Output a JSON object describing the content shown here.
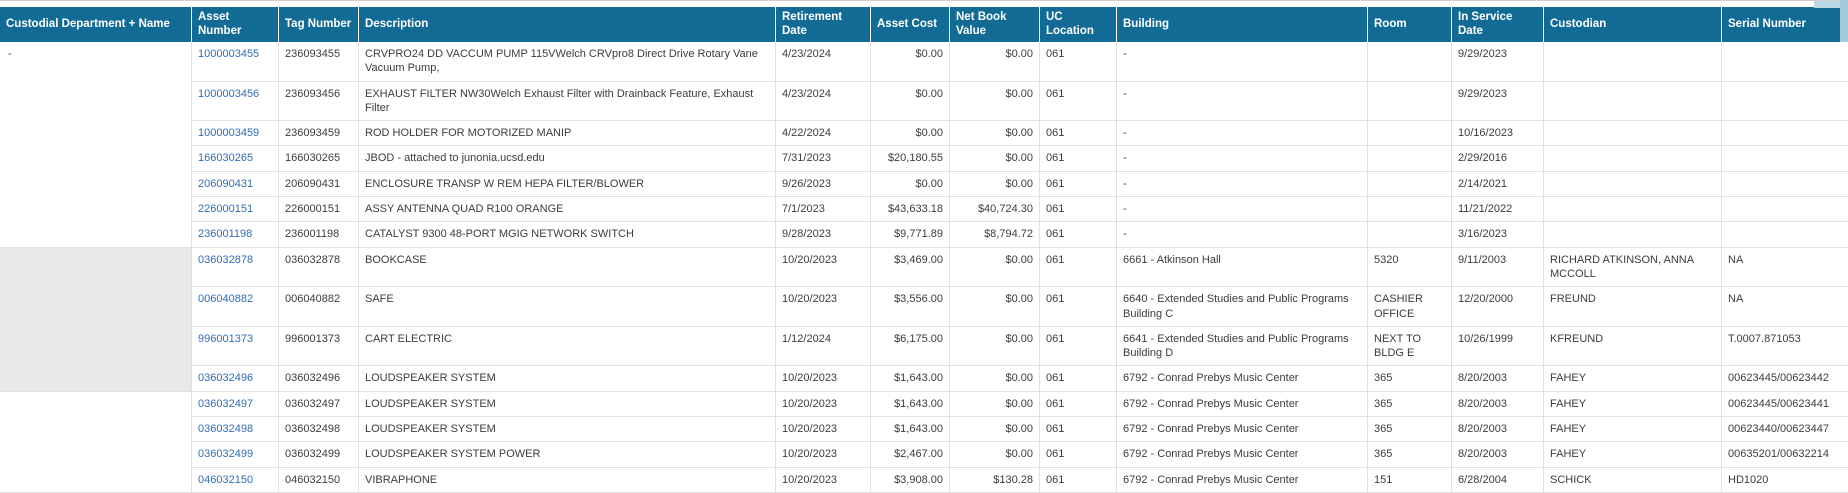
{
  "colors": {
    "header_bg": "#126b95",
    "link": "#2f6eb6",
    "shaded_group_bg": "#e9e9e9",
    "row_border": "#e0e0e0"
  },
  "table": {
    "columns": [
      "Custodial Department + Name",
      "Asset Number",
      "Tag Number",
      "Description",
      "Retirement Date",
      "Asset Cost",
      "Net Book Value",
      "UC Location",
      "Building",
      "Room",
      "In Service Date",
      "Custodian",
      "Serial Number"
    ],
    "groups": [
      {
        "custodial_label": "-",
        "shaded": false,
        "rows": [
          {
            "asset_number": "1000003455",
            "tag_number": "236093455",
            "description": "CRVPRO24 DD VACCUM PUMP 115VWelch CRVpro8 Direct Drive Rotary Vane Vacuum Pump,",
            "retirement_date": "4/23/2024",
            "asset_cost": "$0.00",
            "net_book_value": "$0.00",
            "uc_location": "061",
            "building": "-",
            "room": "",
            "in_service_date": "9/29/2023",
            "custodian": "",
            "serial_number": ""
          },
          {
            "asset_number": "1000003456",
            "tag_number": "236093456",
            "description": "EXHAUST FILTER NW30Welch Exhaust Filter with Drainback Feature, Exhaust Filter",
            "retirement_date": "4/23/2024",
            "asset_cost": "$0.00",
            "net_book_value": "$0.00",
            "uc_location": "061",
            "building": "-",
            "room": "",
            "in_service_date": "9/29/2023",
            "custodian": "",
            "serial_number": ""
          },
          {
            "asset_number": "1000003459",
            "tag_number": "236093459",
            "description": "ROD HOLDER FOR MOTORIZED MANIP",
            "retirement_date": "4/22/2024",
            "asset_cost": "$0.00",
            "net_book_value": "$0.00",
            "uc_location": "061",
            "building": "-",
            "room": "",
            "in_service_date": "10/16/2023",
            "custodian": "",
            "serial_number": ""
          },
          {
            "asset_number": "166030265",
            "tag_number": "166030265",
            "description": "JBOD - attached to junonia.ucsd.edu",
            "retirement_date": "7/31/2023",
            "asset_cost": "$20,180.55",
            "net_book_value": "$0.00",
            "uc_location": "061",
            "building": "-",
            "room": "",
            "in_service_date": "2/29/2016",
            "custodian": "",
            "serial_number": ""
          },
          {
            "asset_number": "206090431",
            "tag_number": "206090431",
            "description": "ENCLOSURE TRANSP W REM HEPA FILTER/BLOWER",
            "retirement_date": "9/26/2023",
            "asset_cost": "$0.00",
            "net_book_value": "$0.00",
            "uc_location": "061",
            "building": "-",
            "room": "",
            "in_service_date": "2/14/2021",
            "custodian": "",
            "serial_number": ""
          },
          {
            "asset_number": "226000151",
            "tag_number": "226000151",
            "description": "ASSY ANTENNA QUAD R100 ORANGE",
            "retirement_date": "7/1/2023",
            "asset_cost": "$43,633.18",
            "net_book_value": "$40,724.30",
            "uc_location": "061",
            "building": "-",
            "room": "",
            "in_service_date": "11/21/2022",
            "custodian": "",
            "serial_number": ""
          },
          {
            "asset_number": "236001198",
            "tag_number": "236001198",
            "description": "CATALYST 9300 48-PORT MGIG NETWORK SWITCH",
            "retirement_date": "9/28/2023",
            "asset_cost": "$9,771.89",
            "net_book_value": "$8,794.72",
            "uc_location": "061",
            "building": "-",
            "room": "",
            "in_service_date": "3/16/2023",
            "custodian": "",
            "serial_number": ""
          }
        ]
      },
      {
        "custodial_label": "",
        "shaded": true,
        "rows": [
          {
            "asset_number": "036032878",
            "tag_number": "036032878",
            "description": "BOOKCASE",
            "retirement_date": "10/20/2023",
            "asset_cost": "$3,469.00",
            "net_book_value": "$0.00",
            "uc_location": "061",
            "building": "6661 - Atkinson Hall",
            "room": "5320",
            "in_service_date": "9/11/2003",
            "custodian": "RICHARD ATKINSON, ANNA MCCOLL",
            "serial_number": "NA"
          },
          {
            "asset_number": "006040882",
            "tag_number": "006040882",
            "description": "SAFE",
            "retirement_date": "10/20/2023",
            "asset_cost": "$3,556.00",
            "net_book_value": "$0.00",
            "uc_location": "061",
            "building": "6640 - Extended Studies and Public Programs Building C",
            "room": "CASHIER OFFICE",
            "in_service_date": "12/20/2000",
            "custodian": "FREUND",
            "serial_number": "NA"
          },
          {
            "asset_number": "996001373",
            "tag_number": "996001373",
            "description": "CART ELECTRIC",
            "retirement_date": "1/12/2024",
            "asset_cost": "$6,175.00",
            "net_book_value": "$0.00",
            "uc_location": "061",
            "building": "6641 - Extended Studies and Public Programs Building D",
            "room": "NEXT TO BLDG E",
            "in_service_date": "10/26/1999",
            "custodian": "KFREUND",
            "serial_number": "T.0007.871053"
          },
          {
            "asset_number": "036032496",
            "tag_number": "036032496",
            "description": "LOUDSPEAKER SYSTEM",
            "retirement_date": "10/20/2023",
            "asset_cost": "$1,643.00",
            "net_book_value": "$0.00",
            "uc_location": "061",
            "building": "6792 - Conrad Prebys Music Center",
            "room": "365",
            "in_service_date": "8/20/2003",
            "custodian": "FAHEY",
            "serial_number": "00623445/00623442"
          }
        ]
      },
      {
        "custodial_label": "",
        "shaded": false,
        "rows": [
          {
            "asset_number": "036032497",
            "tag_number": "036032497",
            "description": "LOUDSPEAKER SYSTEM",
            "retirement_date": "10/20/2023",
            "asset_cost": "$1,643.00",
            "net_book_value": "$0.00",
            "uc_location": "061",
            "building": "6792 - Conrad Prebys Music Center",
            "room": "365",
            "in_service_date": "8/20/2003",
            "custodian": "FAHEY",
            "serial_number": "00623445/00623441"
          },
          {
            "asset_number": "036032498",
            "tag_number": "036032498",
            "description": "LOUDSPEAKER SYSTEM",
            "retirement_date": "10/20/2023",
            "asset_cost": "$1,643.00",
            "net_book_value": "$0.00",
            "uc_location": "061",
            "building": "6792 - Conrad Prebys Music Center",
            "room": "365",
            "in_service_date": "8/20/2003",
            "custodian": "FAHEY",
            "serial_number": "00623440/00623447"
          },
          {
            "asset_number": "036032499",
            "tag_number": "036032499",
            "description": "LOUDSPEAKER SYSTEM POWER",
            "retirement_date": "10/20/2023",
            "asset_cost": "$2,467.00",
            "net_book_value": "$0.00",
            "uc_location": "061",
            "building": "6792 - Conrad Prebys Music Center",
            "room": "365",
            "in_service_date": "8/20/2003",
            "custodian": "FAHEY",
            "serial_number": "00635201/00632214"
          },
          {
            "asset_number": "046032150",
            "tag_number": "046032150",
            "description": "VIBRAPHONE",
            "retirement_date": "10/20/2023",
            "asset_cost": "$3,908.00",
            "net_book_value": "$130.28",
            "uc_location": "061",
            "building": "6792 - Conrad Prebys Music Center",
            "room": "151",
            "in_service_date": "6/28/2004",
            "custodian": "SCHICK",
            "serial_number": "HD1020"
          }
        ]
      }
    ]
  }
}
